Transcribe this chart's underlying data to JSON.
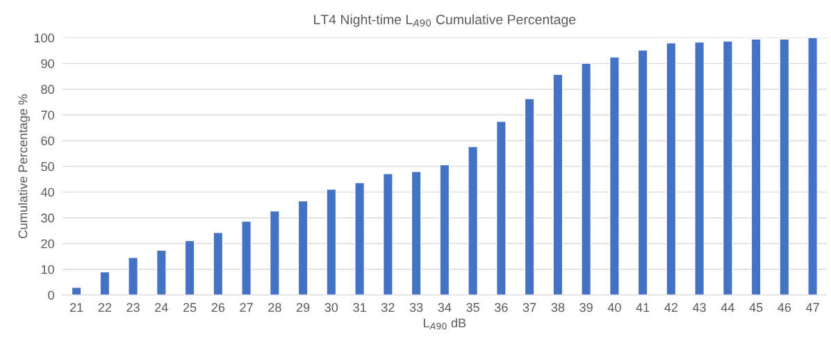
{
  "chart_data": {
    "type": "bar",
    "title": "LT4 Night-time L$_{A90}$ Cumulative Percentage",
    "xlabel": "L$_{A90}$ dB",
    "ylabel": "Cumulative Percentage %",
    "categories": [
      "21",
      "22",
      "23",
      "24",
      "25",
      "26",
      "27",
      "28",
      "29",
      "30",
      "31",
      "32",
      "33",
      "34",
      "35",
      "36",
      "37",
      "38",
      "39",
      "40",
      "41",
      "42",
      "43",
      "44",
      "45",
      "46",
      "47"
    ],
    "values": [
      3.0,
      9.0,
      14.6,
      17.4,
      21.1,
      24.3,
      28.7,
      32.7,
      36.6,
      41.1,
      43.7,
      47.2,
      48.0,
      50.6,
      57.7,
      67.5,
      76.3,
      85.8,
      90.1,
      92.5,
      95.2,
      98.0,
      98.3,
      98.7,
      99.5,
      99.5,
      100
    ],
    "color": "#4472c4",
    "ylim": [
      0,
      100
    ],
    "yticks": [
      0,
      10,
      20,
      30,
      40,
      50,
      60,
      70,
      80,
      90,
      100
    ],
    "grid": "y"
  }
}
